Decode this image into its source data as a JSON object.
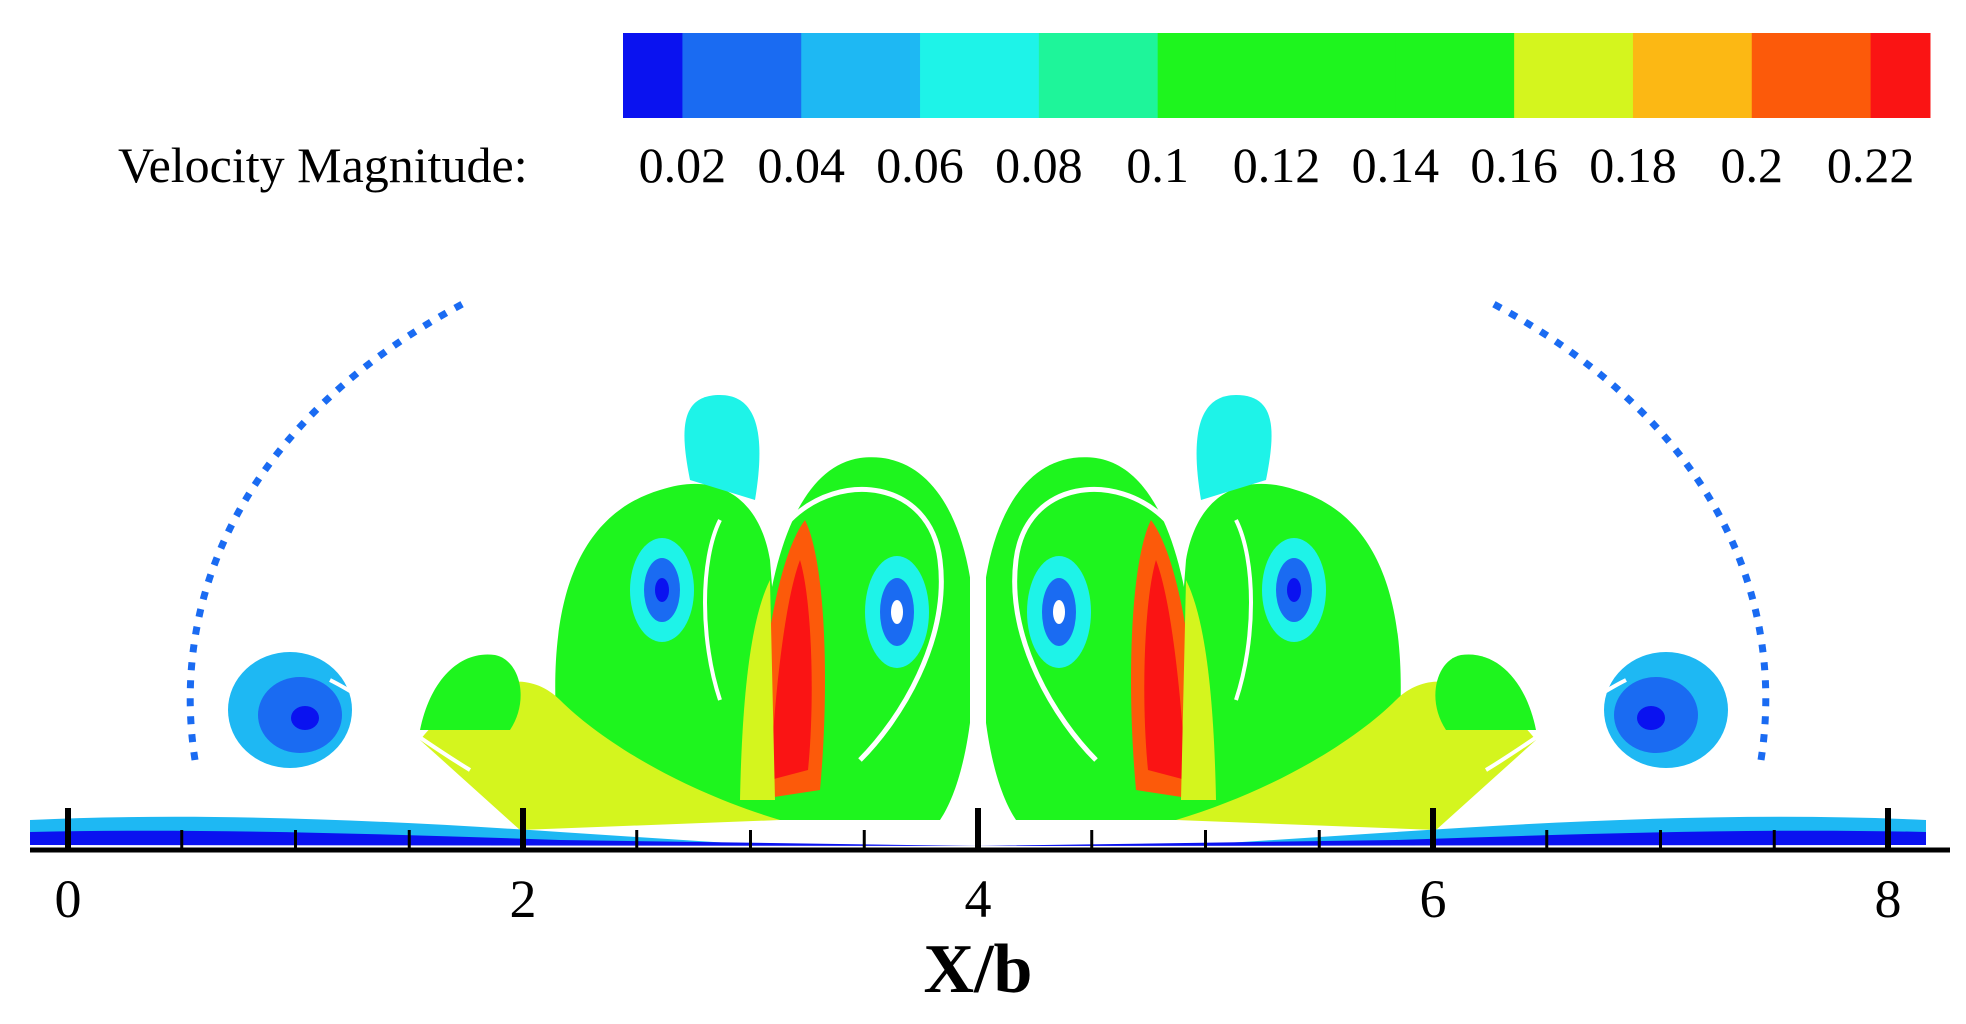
{
  "chart_data": {
    "type": "heatmap",
    "legend": {
      "title": "Velocity Magnitude:",
      "levels": [
        0.01,
        0.02,
        0.04,
        0.06,
        0.08,
        0.1,
        0.12,
        0.14,
        0.16,
        0.18,
        0.2,
        0.22,
        0.23
      ],
      "colors": [
        "#0a12f0",
        "#1a6bf2",
        "#1eb8f3",
        "#1ef3e8",
        "#1ef59a",
        "#1ef51e",
        "#1ef51e",
        "#1ef51e",
        "#d4f51e",
        "#fcb814",
        "#fc5a0a",
        "#fa1414"
      ],
      "tick_labels": [
        "0.02",
        "0.04",
        "0.06",
        "0.08",
        "0.1",
        "0.12",
        "0.14",
        "0.16",
        "0.18",
        "0.2",
        "0.22"
      ]
    },
    "x_axis": {
      "title": "X/b",
      "range": [
        -0.1,
        8.2
      ],
      "major_ticks": [
        0,
        2,
        4,
        6,
        8
      ],
      "tick_labels": [
        "0",
        "2",
        "4",
        "6",
        "8"
      ],
      "minor_ticks": [
        0.5,
        1,
        1.5,
        2.5,
        3,
        3.5,
        4.5,
        5,
        5.5,
        6.5,
        7,
        7.5
      ]
    },
    "vortices": [
      {
        "x": 1.0,
        "level": 0.01
      },
      {
        "x": 2.6,
        "level": 0.02
      },
      {
        "x": 3.6,
        "level": 0.02
      },
      {
        "x": 4.3,
        "level": 0.02
      },
      {
        "x": 5.4,
        "level": 0.02
      },
      {
        "x": 6.9,
        "level": 0.01
      }
    ]
  }
}
